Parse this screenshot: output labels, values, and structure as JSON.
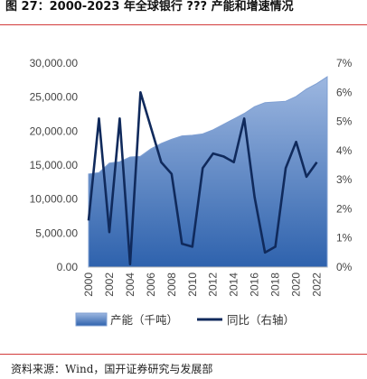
{
  "figure": {
    "title": "图 27：2000-2023 年全球银行 ??? 产能和增速情况",
    "source": "资料来源：Wind，国开证券研究与发展部"
  },
  "colors": {
    "area_top": "#9db7e0",
    "area_bottom": "#2e62ad",
    "line": "#102a5c",
    "rule": "#d23b3b"
  },
  "chart_data": {
    "type": "area",
    "x": [
      2000,
      2001,
      2002,
      2003,
      2004,
      2005,
      2006,
      2007,
      2008,
      2009,
      2010,
      2011,
      2012,
      2013,
      2014,
      2015,
      2016,
      2017,
      2018,
      2019,
      2020,
      2021,
      2022,
      2023
    ],
    "x_tick_labels": [
      "2000",
      "2002",
      "2004",
      "2006",
      "2008",
      "2010",
      "2012",
      "2014",
      "2016",
      "2018",
      "2020",
      "2022"
    ],
    "series": [
      {
        "name": "产能（千吨）",
        "type": "area",
        "axis": "left",
        "values": [
          13700,
          13900,
          15300,
          15500,
          16200,
          16300,
          17400,
          18200,
          18800,
          19300,
          19400,
          19600,
          20200,
          21000,
          21800,
          22600,
          23600,
          24200,
          24300,
          24400,
          25100,
          26200,
          27000,
          28000
        ]
      },
      {
        "name": "同比（右轴）",
        "type": "line",
        "axis": "right",
        "values": [
          1.6,
          5.1,
          1.2,
          5.1,
          0.1,
          6.0,
          4.8,
          3.6,
          3.2,
          0.8,
          0.7,
          3.4,
          3.9,
          3.8,
          3.6,
          5.1,
          2.4,
          0.5,
          0.7,
          3.4,
          4.3,
          3.1,
          3.6,
          null
        ]
      }
    ],
    "y_left": {
      "ticks": [
        "0.00",
        "5,000.00",
        "10,000.00",
        "15,000.00",
        "20,000.00",
        "25,000.00",
        "30,000.00"
      ],
      "lim": [
        0,
        30000
      ]
    },
    "y_right": {
      "ticks": [
        "0%",
        "1%",
        "2%",
        "3%",
        "4%",
        "5%",
        "6%",
        "7%"
      ],
      "lim": [
        0,
        7
      ]
    },
    "legend": {
      "position": "bottom"
    },
    "grid": false
  }
}
